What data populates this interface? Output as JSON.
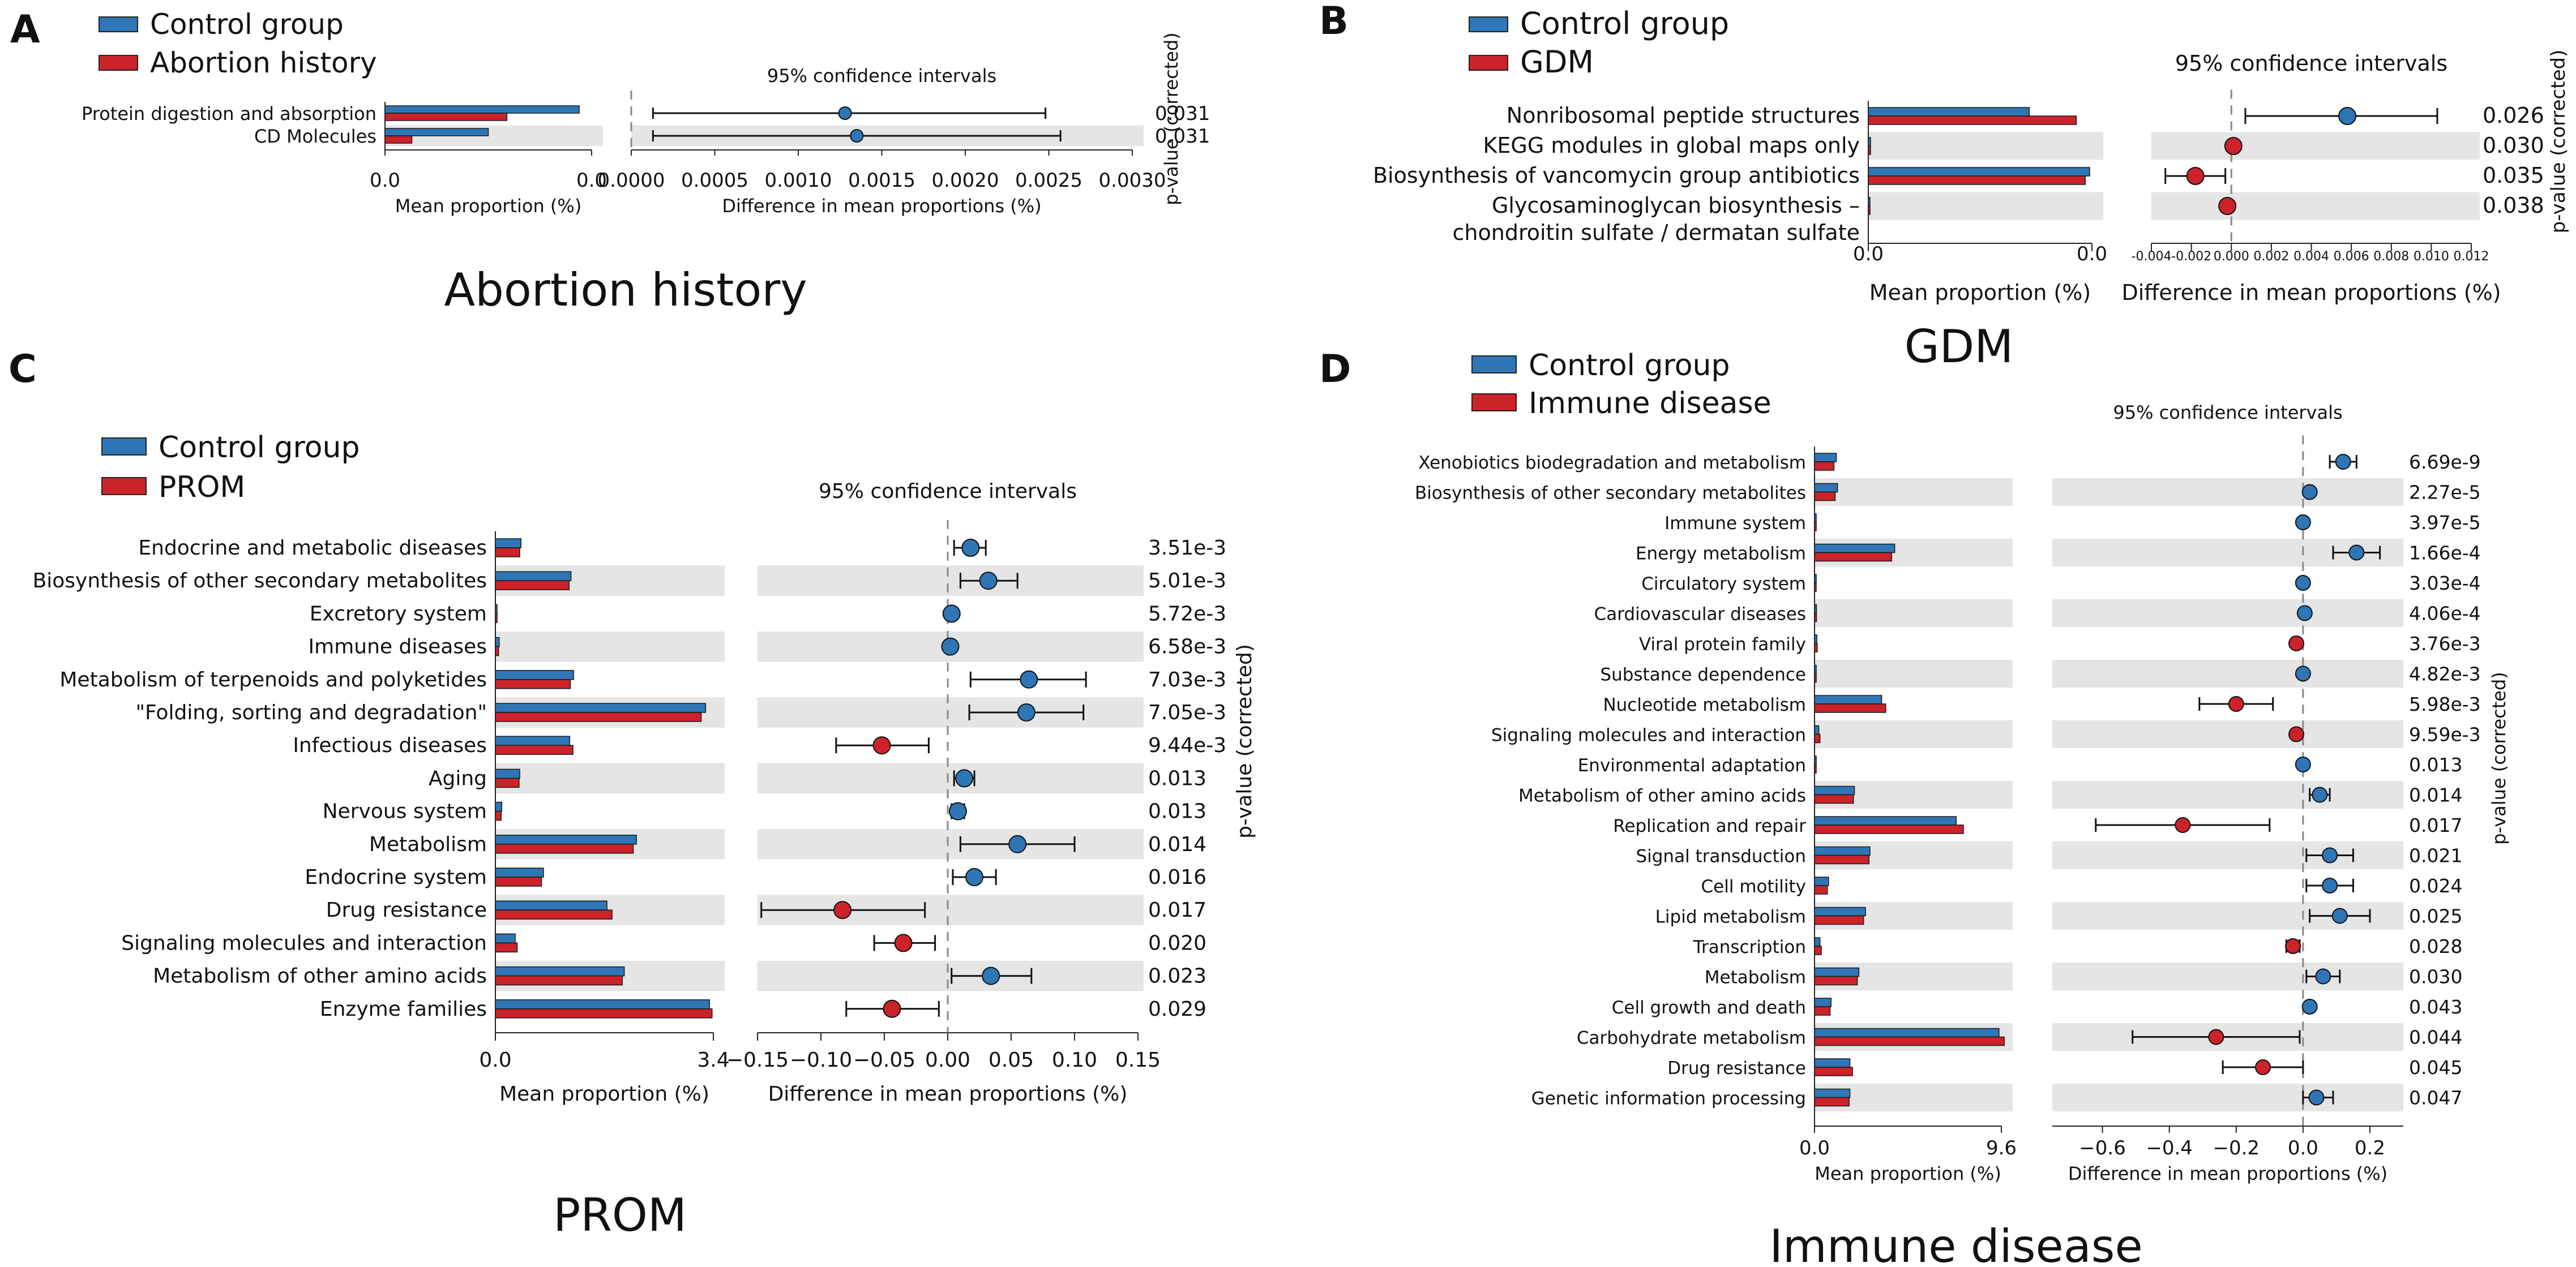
{
  "colors": {
    "control": "#2E76B6",
    "case": "#CC2229",
    "band": "#E5E5E5",
    "dash": "#888888"
  },
  "figure": {
    "title": "Multi-panel extended error bar plot of functional pathways"
  },
  "chart_data": [
    {
      "id": "A",
      "letter": "A",
      "type": "extended-error-bar",
      "caption": "Abortion history",
      "legend": [
        "Control group",
        "Abortion history"
      ],
      "ci_title": "95% confidence intervals",
      "xlabel_left": "Mean proportion (%)",
      "xlabel_right": "Difference in mean proportions (%)",
      "pvalue_label": "p-value (corrected)",
      "left_xlim": [
        0,
        0.0
      ],
      "left_ticks": [
        "0.0",
        "0.0"
      ],
      "right_xlim": [
        0.0,
        0.003
      ],
      "right_ticks": [
        0.0,
        0.0005,
        0.001,
        0.0015,
        0.002,
        0.0025,
        0.003
      ],
      "right_tick_labels": [
        "0.0000",
        "0.0005",
        "0.0010",
        "0.0015",
        "0.0020",
        "0.0025",
        "0.0030"
      ],
      "categories": [
        "Protein digestion and absorption",
        "CD Molecules"
      ],
      "control_frac": [
        0.94,
        0.5
      ],
      "case_frac": [
        0.59,
        0.13
      ],
      "diff": [
        0.00128,
        0.00135
      ],
      "ci_low": [
        0.00013,
        0.00013
      ],
      "ci_high": [
        0.00248,
        0.00257
      ],
      "pvalues": [
        "0.031",
        "0.031"
      ]
    },
    {
      "id": "B",
      "letter": "B",
      "type": "extended-error-bar",
      "caption": "GDM",
      "legend": [
        "Control group",
        "GDM"
      ],
      "ci_title": "95% confidence intervals",
      "xlabel_left": "Mean proportion (%)",
      "xlabel_right": "Difference in mean proportions (%)",
      "pvalue_label": "p-value (corrected)",
      "left_xlim": [
        0,
        0.0
      ],
      "left_ticks": [
        "0.0",
        "0.0"
      ],
      "right_xlim": [
        -0.004,
        0.012
      ],
      "right_ticks": [
        -0.004,
        -0.002,
        0.0,
        0.002,
        0.004,
        0.006,
        0.008,
        0.01,
        0.012
      ],
      "right_tick_labels": [
        "-0.004",
        "-0.002",
        "0.000",
        "0.002",
        "0.004",
        "0.006",
        "0.008",
        "0.010",
        "0.012"
      ],
      "categories": [
        "Nonribosomal peptide structures",
        "KEGG modules in global maps only",
        "Biosynthesis of vancomycin group antibiotics",
        "Glycosaminoglycan biosynthesis – chondroitin sulfate / dermatan sulfate"
      ],
      "control_frac": [
        0.72,
        0.01,
        0.99,
        0.005
      ],
      "case_frac": [
        0.93,
        0.01,
        0.97,
        0.005
      ],
      "diff": [
        0.0058,
        0.0001,
        -0.0018,
        -0.0002
      ],
      "ci_low": [
        0.0007,
        0.0001,
        -0.0033,
        -0.0002
      ],
      "ci_high": [
        0.0103,
        0.0001,
        -0.0003,
        -0.0002
      ],
      "pvalues": [
        "0.026",
        "0.030",
        "0.035",
        "0.038"
      ]
    },
    {
      "id": "C",
      "letter": "C",
      "type": "extended-error-bar",
      "caption": "PROM",
      "legend": [
        "Control group",
        "PROM"
      ],
      "ci_title": "95% confidence intervals",
      "xlabel_left": "Mean proportion (%)",
      "xlabel_right": "Difference in mean proportions (%)",
      "pvalue_label": "p-value (corrected)",
      "left_xlim": [
        0,
        3.4
      ],
      "left_ticks": [
        "0.0",
        "3.4"
      ],
      "right_xlim": [
        -0.15,
        0.15
      ],
      "right_ticks": [
        -0.15,
        -0.1,
        -0.05,
        0.0,
        0.05,
        0.1,
        0.15
      ],
      "right_tick_labels": [
        "−0.15",
        "−0.10",
        "−0.05",
        "0.00",
        "0.05",
        "0.10",
        "0.15"
      ],
      "categories": [
        "Endocrine and metabolic diseases",
        "Biosynthesis of other secondary metabolites",
        "Excretory system",
        "Immune diseases",
        "Metabolism of terpenoids and polyketides",
        "\"Folding, sorting and degradation\"",
        "Infectious diseases",
        "Aging",
        "Nervous system",
        "Metabolism",
        "Endocrine system",
        "Drug resistance",
        "Signaling molecules and interaction",
        "Metabolism of other amino acids",
        "Enzyme families"
      ],
      "control": [
        0.4,
        1.18,
        0.01,
        0.06,
        1.22,
        3.28,
        1.16,
        0.38,
        0.1,
        2.2,
        0.75,
        1.74,
        0.31,
        2.01,
        3.34
      ],
      "case": [
        0.38,
        1.15,
        0.01,
        0.05,
        1.17,
        3.21,
        1.21,
        0.37,
        0.09,
        2.15,
        0.72,
        1.82,
        0.34,
        1.98,
        3.38
      ],
      "diff": [
        0.018,
        0.032,
        0.003,
        0.002,
        0.064,
        0.062,
        -0.052,
        0.013,
        0.008,
        0.055,
        0.021,
        -0.083,
        -0.035,
        0.034,
        -0.044
      ],
      "ci_low": [
        0.005,
        0.01,
        0.001,
        0.001,
        0.018,
        0.017,
        -0.088,
        0.005,
        0.003,
        0.01,
        0.004,
        -0.147,
        -0.058,
        0.003,
        -0.08
      ],
      "ci_high": [
        0.03,
        0.055,
        0.005,
        0.003,
        0.109,
        0.107,
        -0.015,
        0.021,
        0.013,
        0.1,
        0.038,
        -0.018,
        -0.01,
        0.066,
        -0.007
      ],
      "pvalues": [
        "3.51e-3",
        "5.01e-3",
        "5.72e-3",
        "6.58e-3",
        "7.03e-3",
        "7.05e-3",
        "9.44e-3",
        "0.013",
        "0.013",
        "0.014",
        "0.016",
        "0.017",
        "0.020",
        "0.023",
        "0.029"
      ]
    },
    {
      "id": "D",
      "letter": "D",
      "type": "extended-error-bar",
      "caption": "Immune disease",
      "legend": [
        "Control group",
        "Immune disease"
      ],
      "ci_title": "95% confidence intervals",
      "xlabel_left": "Mean proportion (%)",
      "xlabel_right": "Difference in mean proportions (%)",
      "pvalue_label": "p-value (corrected)",
      "left_xlim": [
        0,
        9.6
      ],
      "left_ticks": [
        "0.0",
        "9.6"
      ],
      "right_xlim": [
        -0.75,
        0.3
      ],
      "right_ticks": [
        -0.6,
        -0.4,
        -0.2,
        0.0,
        0.2
      ],
      "right_tick_labels": [
        "−0.6",
        "−0.4",
        "−0.2",
        "0.0",
        "0.2"
      ],
      "categories": [
        "Xenobiotics biodegradation and metabolism",
        "Biosynthesis of other secondary metabolites",
        "Immune system",
        "Energy metabolism",
        "Circulatory system",
        "Cardiovascular diseases",
        "Viral protein family",
        "Substance dependence",
        "Nucleotide metabolism",
        "Signaling molecules and interaction",
        "Environmental adaptation",
        "Metabolism of other amino acids",
        "Replication and repair",
        "Signal transduction",
        "Cell motility",
        "Lipid metabolism",
        "Transcription",
        "Metabolism",
        "Cell growth and death",
        "Carbohydrate metabolism",
        "Drug resistance",
        "Genetic information processing"
      ],
      "control": [
        1.12,
        1.18,
        0.02,
        4.12,
        0.05,
        0.1,
        0.12,
        0.03,
        3.45,
        0.22,
        0.04,
        2.05,
        7.28,
        2.85,
        0.72,
        2.62,
        0.28,
        2.28,
        0.85,
        9.48,
        1.82,
        1.82
      ],
      "case": [
        1.0,
        1.06,
        0.02,
        3.96,
        0.05,
        0.1,
        0.14,
        0.03,
        3.66,
        0.28,
        0.04,
        2.0,
        7.65,
        2.8,
        0.66,
        2.52,
        0.35,
        2.2,
        0.8,
        9.75,
        1.95,
        1.78
      ],
      "diff": [
        0.12,
        0.02,
        0.0,
        0.16,
        0.0,
        0.005,
        -0.02,
        0.0,
        -0.2,
        -0.02,
        0.0,
        0.05,
        -0.36,
        0.08,
        0.08,
        0.11,
        -0.03,
        0.06,
        0.02,
        -0.26,
        -0.12,
        0.04
      ],
      "ci_low": [
        0.08,
        0.01,
        0.0,
        0.09,
        0.0,
        0.002,
        -0.03,
        0.0,
        -0.31,
        -0.03,
        0.0,
        0.02,
        -0.62,
        0.01,
        0.01,
        0.02,
        -0.05,
        0.01,
        0.01,
        -0.51,
        -0.24,
        0.0
      ],
      "ci_high": [
        0.16,
        0.03,
        0.0,
        0.23,
        0.0,
        0.008,
        -0.01,
        0.0,
        -0.09,
        -0.01,
        0.0,
        0.08,
        -0.1,
        0.15,
        0.15,
        0.2,
        -0.01,
        0.11,
        0.03,
        -0.01,
        0.0,
        0.09
      ],
      "pvalues": [
        "6.69e-9",
        "2.27e-5",
        "3.97e-5",
        "1.66e-4",
        "3.03e-4",
        "4.06e-4",
        "3.76e-3",
        "4.82e-3",
        "5.98e-3",
        "9.59e-3",
        "0.013",
        "0.014",
        "0.017",
        "0.021",
        "0.024",
        "0.025",
        "0.028",
        "0.030",
        "0.043",
        "0.044",
        "0.045",
        "0.047"
      ]
    }
  ]
}
